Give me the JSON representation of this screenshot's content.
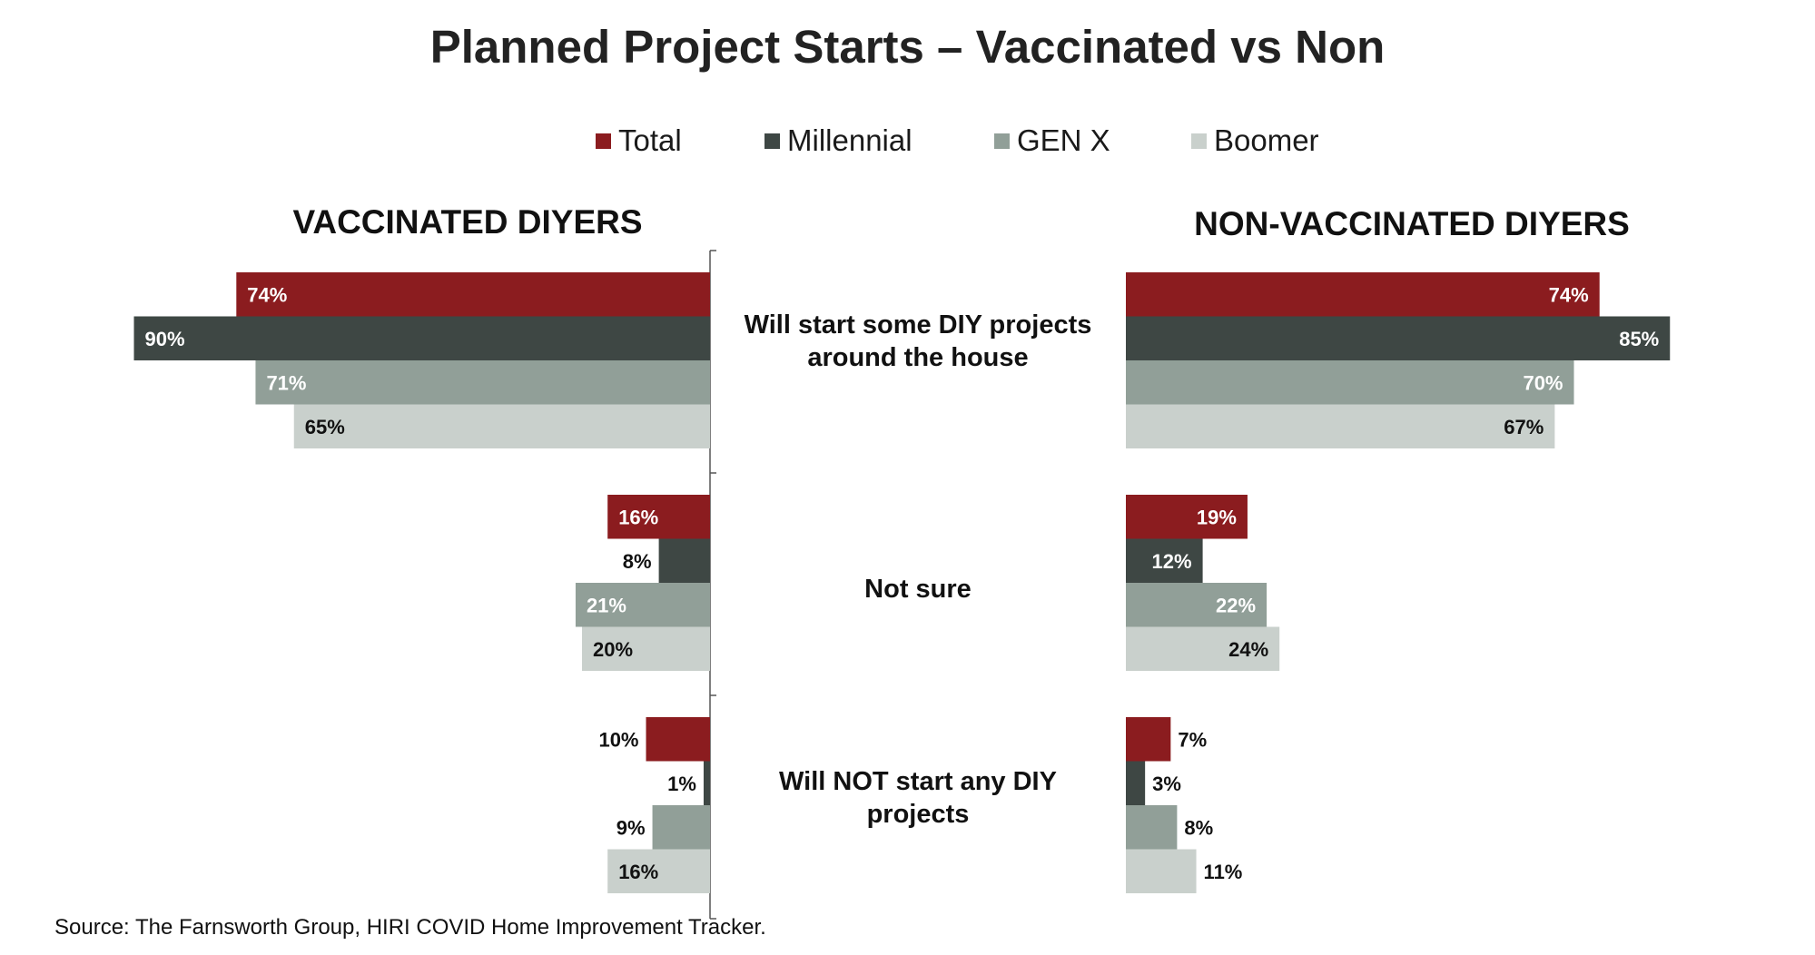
{
  "title": "Planned Project Starts – Vaccinated vs Non",
  "legend": [
    {
      "label": "Total",
      "color": "#8b1c1f"
    },
    {
      "label": "Millennial",
      "color": "#3e4744"
    },
    {
      "label": "GEN X",
      "color": "#919f98"
    },
    {
      "label": "Boomer",
      "color": "#c9d0cc"
    }
  ],
  "panels": {
    "left_title": "VACCINATED DIYERS",
    "right_title": "NON-VACCINATED DIYERS"
  },
  "source": "Source: The Farnsworth Group, HIRI COVID Home Improvement Tracker.",
  "chart_data": {
    "type": "bar",
    "orientation": "horizontal",
    "categories": [
      "Will start some DIY projects around the house",
      "Not sure",
      "Will NOT start any DIY projects"
    ],
    "panels": [
      {
        "name": "VACCINATED DIYERS",
        "series": [
          {
            "name": "Total",
            "values": [
              74,
              16,
              10
            ]
          },
          {
            "name": "Millennial",
            "values": [
              90,
              8,
              1
            ]
          },
          {
            "name": "GEN X",
            "values": [
              71,
              21,
              9
            ]
          },
          {
            "name": "Boomer",
            "values": [
              65,
              20,
              16
            ]
          }
        ]
      },
      {
        "name": "NON-VACCINATED DIYERS",
        "series": [
          {
            "name": "Total",
            "values": [
              74,
              19,
              7
            ]
          },
          {
            "name": "Millennial",
            "values": [
              85,
              12,
              3
            ]
          },
          {
            "name": "GEN X",
            "values": [
              70,
              22,
              8
            ]
          },
          {
            "name": "Boomer",
            "values": [
              67,
              24,
              11
            ]
          }
        ]
      }
    ],
    "value_format": "percent",
    "grid": false,
    "legend_position": "top"
  }
}
